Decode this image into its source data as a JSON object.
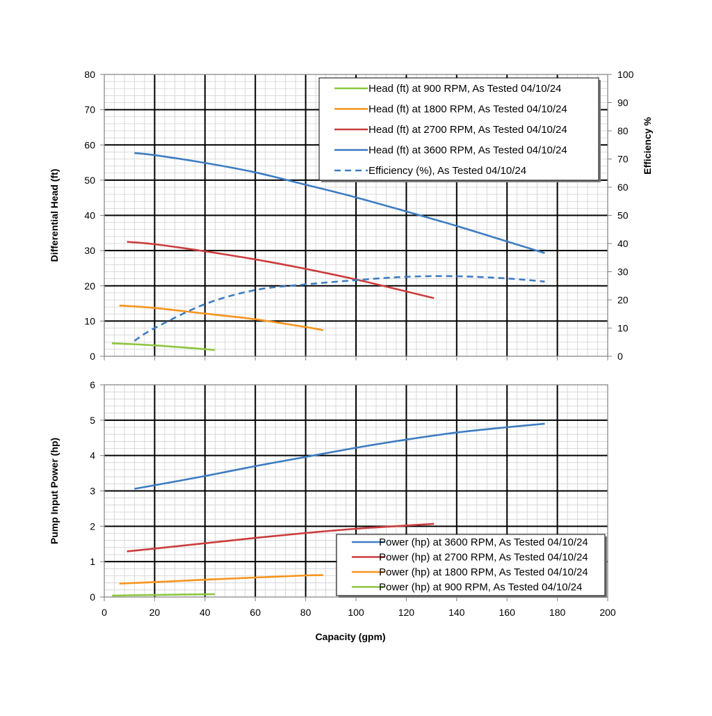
{
  "chart_data": [
    {
      "type": "line",
      "ylabel": "Differential Head (ft)",
      "y2label": "Efficiency %",
      "xlim": [
        0,
        200
      ],
      "ylim": [
        0,
        80
      ],
      "y2lim": [
        0,
        100
      ],
      "x_ticks": [
        0,
        20,
        40,
        60,
        80,
        100,
        120,
        140,
        160,
        180,
        200
      ],
      "y_ticks": [
        0,
        10,
        20,
        30,
        40,
        50,
        60,
        70,
        80
      ],
      "y2_ticks": [
        0,
        10,
        20,
        30,
        40,
        50,
        60,
        70,
        80,
        90,
        100
      ],
      "grid": true,
      "legend_position": "top-right",
      "series": [
        {
          "name": "Head (ft) at 900 RPM, As Tested 04/10/24",
          "color": "#8dc63f",
          "style": "solid",
          "axis": "left",
          "x": [
            3,
            20,
            44
          ],
          "y": [
            3.7,
            3.1,
            1.8
          ]
        },
        {
          "name": "Head (ft) at 1800 RPM, As Tested 04/10/24",
          "color": "#f7941d",
          "style": "solid",
          "axis": "left",
          "x": [
            6,
            20,
            40,
            60,
            80,
            87
          ],
          "y": [
            14.4,
            13.7,
            12.1,
            10.5,
            8.3,
            7.4
          ]
        },
        {
          "name": "Head (ft) at 2700 RPM, As Tested 04/10/24",
          "color": "#cc3d3d",
          "style": "solid",
          "axis": "left",
          "x": [
            9,
            20,
            40,
            60,
            80,
            100,
            120,
            131
          ],
          "y": [
            32.5,
            31.8,
            29.8,
            27.5,
            24.8,
            21.8,
            18.4,
            16.5
          ]
        },
        {
          "name": "Head (ft) at 3600 RPM, As Tested 04/10/24",
          "color": "#3d7cc2",
          "style": "solid",
          "axis": "left",
          "x": [
            12,
            20,
            40,
            60,
            80,
            100,
            120,
            140,
            160,
            175
          ],
          "y": [
            57.7,
            57.1,
            54.9,
            52.2,
            48.7,
            45.1,
            41.1,
            37.0,
            32.6,
            29.3
          ]
        },
        {
          "name": "Efficiency (%), As Tested 04/10/24",
          "color": "#3d7cc2",
          "style": "dashed",
          "axis": "right",
          "x": [
            12,
            20,
            40,
            60,
            80,
            100,
            120,
            140,
            160,
            175
          ],
          "y": [
            5.5,
            10,
            18.5,
            23.5,
            25.5,
            27,
            28.2,
            28.4,
            27.6,
            26.5
          ]
        }
      ]
    },
    {
      "type": "line",
      "xlabel": "Capacity (gpm)",
      "ylabel": "Pump Input Power (hp)",
      "xlim": [
        0,
        200
      ],
      "ylim": [
        0,
        6
      ],
      "x_ticks": [
        0,
        20,
        40,
        60,
        80,
        100,
        120,
        140,
        160,
        180,
        200
      ],
      "y_ticks": [
        0,
        1,
        2,
        3,
        4,
        5,
        6
      ],
      "grid": true,
      "legend_position": "bottom-right",
      "series": [
        {
          "name": "Power (hp) at 3600 RPM, As Tested 04/10/24",
          "color": "#3d7cc2",
          "style": "solid",
          "x": [
            12,
            20,
            40,
            60,
            80,
            100,
            120,
            140,
            160,
            175
          ],
          "y": [
            3.06,
            3.16,
            3.42,
            3.7,
            3.96,
            4.22,
            4.45,
            4.65,
            4.8,
            4.9
          ]
        },
        {
          "name": "Power (hp) at 2700 RPM, As Tested 04/10/24",
          "color": "#cc3d3d",
          "style": "solid",
          "x": [
            9,
            20,
            40,
            60,
            80,
            100,
            120,
            131
          ],
          "y": [
            1.29,
            1.37,
            1.52,
            1.67,
            1.81,
            1.93,
            2.02,
            2.07
          ]
        },
        {
          "name": "Power (hp) at 1800 RPM, As Tested 04/10/24",
          "color": "#f7941d",
          "style": "solid",
          "x": [
            6,
            20,
            40,
            60,
            80,
            87
          ],
          "y": [
            0.38,
            0.42,
            0.49,
            0.55,
            0.61,
            0.62
          ]
        },
        {
          "name": "Power (hp) at 900 RPM, As Tested 04/10/24",
          "color": "#8dc63f",
          "style": "solid",
          "x": [
            3,
            20,
            44
          ],
          "y": [
            0.04,
            0.06,
            0.08
          ]
        }
      ]
    }
  ]
}
